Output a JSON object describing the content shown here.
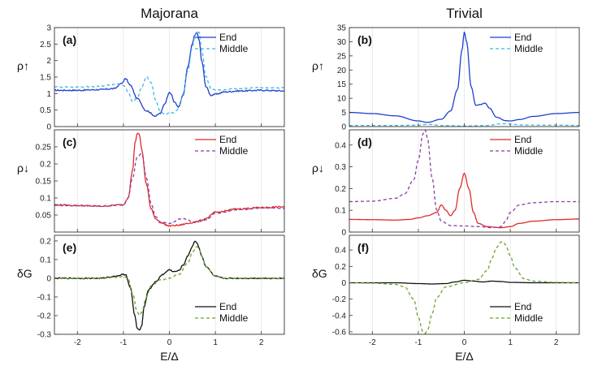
{
  "chart_data": [
    {
      "type": "line",
      "panel": "(a)",
      "column_title": "Majorana",
      "ylabel": "ρ↑",
      "xlabel": "",
      "xlim": [
        -2.5,
        2.5
      ],
      "ylim": [
        0,
        3
      ],
      "xticks": [
        -2,
        -1,
        0,
        1,
        2
      ],
      "yticks": [
        0,
        0.5,
        1,
        1.5,
        2,
        2.5,
        3
      ],
      "xtick_labels": [
        "",
        "",
        "",
        "",
        ""
      ],
      "ytick_labels": [
        "0",
        "0.5",
        "1",
        "1.5",
        "2",
        "2.5",
        "3"
      ],
      "legend_position": "top-right",
      "series": [
        {
          "name": "End",
          "color": "#1f3fcf",
          "dash": "solid",
          "noise": 0.02,
          "x": [
            -2.5,
            -2.0,
            -1.5,
            -1.2,
            -1.05,
            -0.95,
            -0.85,
            -0.7,
            -0.5,
            -0.3,
            -0.2,
            -0.1,
            0.0,
            0.05,
            0.1,
            0.2,
            0.3,
            0.4,
            0.5,
            0.55,
            0.6,
            0.65,
            0.7,
            0.8,
            0.9,
            1.0,
            1.2,
            1.5,
            2.0,
            2.5
          ],
          "y": [
            1.1,
            1.1,
            1.12,
            1.15,
            1.3,
            1.45,
            1.25,
            0.85,
            0.48,
            0.32,
            0.4,
            0.7,
            1.05,
            0.95,
            0.75,
            0.6,
            0.95,
            1.8,
            2.5,
            2.78,
            2.85,
            2.6,
            2.0,
            1.2,
            0.95,
            0.98,
            1.05,
            1.08,
            1.1,
            1.08
          ]
        },
        {
          "name": "Middle",
          "color": "#3fb8e0",
          "dash": "4,3",
          "noise": 0.015,
          "x": [
            -2.5,
            -2.0,
            -1.5,
            -1.1,
            -1.0,
            -0.9,
            -0.8,
            -0.7,
            -0.6,
            -0.5,
            -0.4,
            -0.3,
            -0.2,
            -0.1,
            0.0,
            0.1,
            0.2,
            0.3,
            0.4,
            0.5,
            0.55,
            0.6,
            0.65,
            0.7,
            0.8,
            0.9,
            1.0,
            1.5,
            2.0,
            2.5
          ],
          "y": [
            1.2,
            1.2,
            1.22,
            1.3,
            1.25,
            1.05,
            0.75,
            0.85,
            1.2,
            1.5,
            1.35,
            0.8,
            0.45,
            0.38,
            0.4,
            0.42,
            0.55,
            1.0,
            1.7,
            2.4,
            2.7,
            2.9,
            2.85,
            2.3,
            1.5,
            1.15,
            1.1,
            1.15,
            1.18,
            1.17
          ]
        }
      ]
    },
    {
      "type": "line",
      "panel": "(b)",
      "column_title": "Trivial",
      "ylabel": "ρ↑",
      "xlabel": "",
      "xlim": [
        -2.5,
        2.5
      ],
      "ylim": [
        0,
        35
      ],
      "xticks": [
        -2,
        -1,
        0,
        1,
        2
      ],
      "yticks": [
        0,
        5,
        10,
        15,
        20,
        25,
        30,
        35
      ],
      "xtick_labels": [
        "",
        "",
        "",
        "",
        ""
      ],
      "ytick_labels": [
        "0",
        "5",
        "10",
        "15",
        "20",
        "25",
        "30",
        "35"
      ],
      "legend_position": "top-right",
      "series": [
        {
          "name": "End",
          "color": "#1f3fcf",
          "dash": "solid",
          "noise": 0,
          "x": [
            -2.5,
            -2.0,
            -1.5,
            -1.0,
            -0.8,
            -0.5,
            -0.3,
            -0.15,
            -0.05,
            0.0,
            0.05,
            0.15,
            0.25,
            0.35,
            0.45,
            0.55,
            0.7,
            0.9,
            1.0,
            1.2,
            1.5,
            2.0,
            2.5
          ],
          "y": [
            5,
            4.6,
            3.8,
            2,
            1.5,
            2.6,
            5.5,
            13,
            27,
            33.5,
            30,
            14,
            7.5,
            7.8,
            8.3,
            6.5,
            3.3,
            2.1,
            2,
            2.5,
            3.6,
            4.6,
            5
          ]
        },
        {
          "name": "Middle",
          "color": "#3fb8e0",
          "dash": "4,3",
          "noise": 0,
          "x": [
            -2.5,
            -1.5,
            -1.0,
            -0.8,
            -0.5,
            0.0,
            0.5,
            0.8,
            1.0,
            1.2,
            1.5,
            2.0,
            2.5
          ],
          "y": [
            0.4,
            0.4,
            0.5,
            0.8,
            0.4,
            0.2,
            0.4,
            1,
            0.9,
            0.6,
            0.5,
            0.5,
            0.4
          ]
        }
      ]
    },
    {
      "type": "line",
      "panel": "(c)",
      "column_title": "",
      "ylabel": "ρ↓",
      "xlabel": "",
      "xlim": [
        -2.5,
        2.5
      ],
      "ylim": [
        0,
        0.3
      ],
      "xticks": [
        -2,
        -1,
        0,
        1,
        2
      ],
      "yticks": [
        0.05,
        0.1,
        0.15,
        0.2,
        0.25
      ],
      "xtick_labels": [
        "",
        "",
        "",
        "",
        ""
      ],
      "ytick_labels": [
        "0.05",
        "0.1",
        "0.15",
        "0.2",
        "0.25"
      ],
      "legend_position": "top-right",
      "series": [
        {
          "name": "End",
          "color": "#e02a2a",
          "dash": "solid",
          "noise": 0.002,
          "x": [
            -2.5,
            -2.0,
            -1.5,
            -1.0,
            -0.9,
            -0.8,
            -0.75,
            -0.7,
            -0.65,
            -0.6,
            -0.5,
            -0.4,
            -0.3,
            -0.2,
            0.0,
            0.2,
            0.4,
            0.5,
            0.6,
            0.7,
            0.8,
            1.0,
            1.5,
            2.0,
            2.5
          ],
          "y": [
            0.08,
            0.078,
            0.076,
            0.08,
            0.1,
            0.18,
            0.26,
            0.29,
            0.285,
            0.24,
            0.14,
            0.07,
            0.04,
            0.028,
            0.018,
            0.02,
            0.025,
            0.028,
            0.03,
            0.035,
            0.04,
            0.058,
            0.068,
            0.072,
            0.074
          ]
        },
        {
          "name": "Middle",
          "color": "#8b3fa3",
          "dash": "4,3",
          "noise": 0.001,
          "x": [
            -2.5,
            -2.0,
            -1.5,
            -1.0,
            -0.9,
            -0.8,
            -0.7,
            -0.6,
            -0.5,
            -0.4,
            -0.3,
            -0.2,
            0.0,
            0.1,
            0.2,
            0.3,
            0.4,
            0.5,
            0.7,
            0.8,
            1.0,
            1.5,
            2.0,
            2.5
          ],
          "y": [
            0.078,
            0.077,
            0.076,
            0.08,
            0.1,
            0.16,
            0.22,
            0.23,
            0.16,
            0.085,
            0.045,
            0.03,
            0.025,
            0.03,
            0.038,
            0.04,
            0.035,
            0.03,
            0.032,
            0.036,
            0.055,
            0.065,
            0.07,
            0.07
          ]
        }
      ]
    },
    {
      "type": "line",
      "panel": "(d)",
      "column_title": "",
      "ylabel": "ρ↓",
      "xlabel": "",
      "xlim": [
        -2.5,
        2.5
      ],
      "ylim": [
        0,
        0.47
      ],
      "xticks": [
        -2,
        -1,
        0,
        1,
        2
      ],
      "yticks": [
        0,
        0.1,
        0.2,
        0.3,
        0.4
      ],
      "xtick_labels": [
        "",
        "",
        "",
        "",
        ""
      ],
      "ytick_labels": [
        "0",
        "0.1",
        "0.2",
        "0.3",
        "0.4"
      ],
      "legend_position": "top-right",
      "series": [
        {
          "name": "End",
          "color": "#e02a2a",
          "dash": "solid",
          "noise": 0,
          "x": [
            -2.5,
            -2.0,
            -1.5,
            -1.2,
            -1.0,
            -0.8,
            -0.6,
            -0.5,
            -0.4,
            -0.3,
            -0.2,
            -0.1,
            0.0,
            0.1,
            0.2,
            0.3,
            0.5,
            0.8,
            1.0,
            1.2,
            1.5,
            2.0,
            2.5
          ],
          "y": [
            0.058,
            0.057,
            0.055,
            0.058,
            0.065,
            0.075,
            0.09,
            0.125,
            0.1,
            0.075,
            0.1,
            0.2,
            0.27,
            0.2,
            0.09,
            0.04,
            0.025,
            0.02,
            0.025,
            0.04,
            0.05,
            0.057,
            0.06
          ]
        },
        {
          "name": "Middle",
          "color": "#8b3fa3",
          "dash": "4,3",
          "noise": 0,
          "x": [
            -2.5,
            -2.0,
            -1.5,
            -1.3,
            -1.1,
            -1.0,
            -0.9,
            -0.85,
            -0.8,
            -0.7,
            -0.6,
            -0.5,
            -0.3,
            0.0,
            0.3,
            0.6,
            0.8,
            0.9,
            1.0,
            1.2,
            1.5,
            2.0,
            2.5
          ],
          "y": [
            0.14,
            0.142,
            0.155,
            0.175,
            0.24,
            0.33,
            0.45,
            0.47,
            0.43,
            0.25,
            0.1,
            0.05,
            0.03,
            0.028,
            0.025,
            0.02,
            0.025,
            0.05,
            0.09,
            0.125,
            0.135,
            0.14,
            0.14
          ]
        }
      ]
    },
    {
      "type": "line",
      "panel": "(e)",
      "column_title": "",
      "ylabel": "δG",
      "xlabel": "E/Δ",
      "xlim": [
        -2.5,
        2.5
      ],
      "ylim": [
        -0.3,
        0.23
      ],
      "xticks": [
        -2,
        -1,
        0,
        1,
        2
      ],
      "yticks": [
        -0.3,
        -0.2,
        -0.1,
        0,
        0.1,
        0.2
      ],
      "xtick_labels": [
        "-2",
        "-1",
        "0",
        "1",
        "2"
      ],
      "ytick_labels": [
        "-0.3",
        "-0.2",
        "-0.1",
        "0",
        "0.1",
        "0.2"
      ],
      "legend_position": "bottom-right",
      "series": [
        {
          "name": "End",
          "color": "#111111",
          "dash": "solid",
          "noise": 0.003,
          "x": [
            -2.5,
            -2.0,
            -1.5,
            -1.2,
            -1.0,
            -0.95,
            -0.85,
            -0.75,
            -0.7,
            -0.65,
            -0.6,
            -0.55,
            -0.45,
            -0.3,
            -0.15,
            0.0,
            0.1,
            0.2,
            0.3,
            0.4,
            0.5,
            0.55,
            0.6,
            0.65,
            0.7,
            0.8,
            1.0,
            1.2,
            1.5,
            2.0,
            2.5
          ],
          "y": [
            0,
            0,
            0,
            0.01,
            0.02,
            0.02,
            -0.05,
            -0.2,
            -0.27,
            -0.28,
            -0.25,
            -0.15,
            -0.06,
            -0.02,
            0.02,
            0.045,
            0.035,
            0.04,
            0.07,
            0.12,
            0.17,
            0.2,
            0.19,
            0.16,
            0.12,
            0.06,
            0.01,
            0,
            0,
            0,
            0
          ]
        },
        {
          "name": "Middle",
          "color": "#6ba32f",
          "dash": "4,3",
          "noise": 0.002,
          "x": [
            -2.5,
            -2.0,
            -1.5,
            -1.2,
            -1.0,
            -0.9,
            -0.8,
            -0.7,
            -0.65,
            -0.6,
            -0.5,
            -0.4,
            -0.2,
            0.0,
            0.2,
            0.4,
            0.5,
            0.6,
            0.65,
            0.7,
            0.8,
            1.0,
            1.2,
            1.5,
            2.0,
            2.5
          ],
          "y": [
            0,
            0,
            0,
            0.005,
            0.01,
            0,
            -0.08,
            -0.18,
            -0.2,
            -0.18,
            -0.1,
            -0.04,
            -0.01,
            0,
            0.02,
            0.08,
            0.14,
            0.17,
            0.16,
            0.12,
            0.06,
            0.01,
            0,
            0,
            0,
            0
          ]
        }
      ]
    },
    {
      "type": "line",
      "panel": "(f)",
      "column_title": "",
      "ylabel": "δG",
      "xlabel": "E/Δ",
      "xlim": [
        -2.5,
        2.5
      ],
      "ylim": [
        -0.63,
        0.58
      ],
      "xticks": [
        -2,
        -1,
        0,
        1,
        2
      ],
      "yticks": [
        -0.6,
        -0.4,
        -0.2,
        0,
        0.2,
        0.4
      ],
      "xtick_labels": [
        "-2",
        "-1",
        "0",
        "1",
        "2"
      ],
      "ytick_labels": [
        "-0.6",
        "-0.4",
        "-0.2",
        "0",
        "0.2",
        "0.4"
      ],
      "legend_position": "bottom-right",
      "series": [
        {
          "name": "End",
          "color": "#111111",
          "dash": "solid",
          "noise": 0,
          "x": [
            -2.5,
            -1.5,
            -1.0,
            -0.7,
            -0.4,
            -0.2,
            0.0,
            0.2,
            0.4,
            0.6,
            0.8,
            1.0,
            1.5,
            2.0,
            2.5
          ],
          "y": [
            0,
            0,
            -0.01,
            -0.015,
            -0.01,
            0.01,
            0.03,
            0.02,
            0.01,
            0.02,
            0.015,
            0.005,
            0,
            0,
            0
          ]
        },
        {
          "name": "Middle",
          "color": "#6ba32f",
          "dash": "4,3",
          "noise": 0,
          "x": [
            -2.5,
            -2.0,
            -1.5,
            -1.3,
            -1.1,
            -1.0,
            -0.9,
            -0.85,
            -0.8,
            -0.7,
            -0.6,
            -0.4,
            0.0,
            0.3,
            0.5,
            0.6,
            0.7,
            0.8,
            0.85,
            0.9,
            1.0,
            1.1,
            1.3,
            1.5,
            2.0,
            2.5
          ],
          "y": [
            0,
            -0.005,
            -0.02,
            -0.05,
            -0.2,
            -0.42,
            -0.6,
            -0.62,
            -0.58,
            -0.38,
            -0.18,
            -0.05,
            0,
            0.04,
            0.15,
            0.3,
            0.43,
            0.5,
            0.5,
            0.46,
            0.33,
            0.18,
            0.05,
            0.02,
            0.005,
            0
          ]
        }
      ]
    }
  ]
}
